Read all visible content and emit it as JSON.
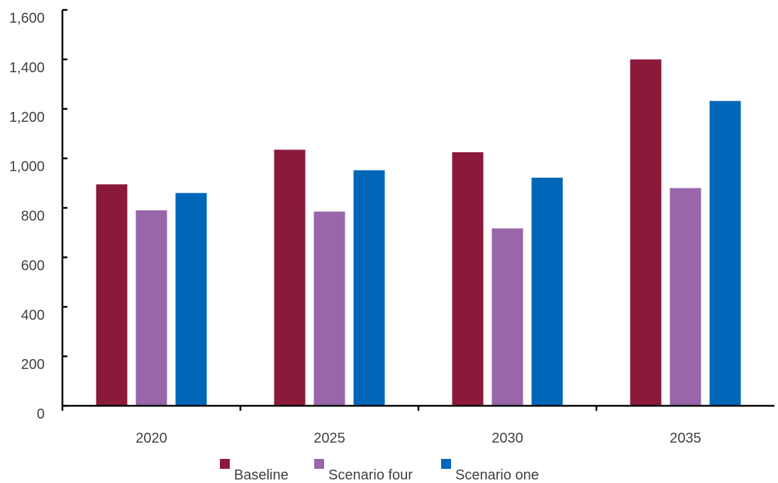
{
  "chart_data": {
    "type": "bar",
    "title": "",
    "xlabel": "",
    "ylabel": "",
    "categories": [
      "2020",
      "2025",
      "2030",
      "2035"
    ],
    "series": [
      {
        "name": "Baseline",
        "color": "#8B1A3A",
        "values": [
          895,
          1035,
          1025,
          1400
        ]
      },
      {
        "name": "Scenario four",
        "color": "#9966AA",
        "values": [
          790,
          785,
          717,
          880
        ]
      },
      {
        "name": "Scenario one",
        "color": "#0066B8",
        "values": [
          860,
          952,
          922,
          1232
        ]
      }
    ],
    "ylim": [
      0,
      1600
    ],
    "yticks": [
      0,
      200,
      400,
      600,
      800,
      1000,
      1200,
      1400,
      1600
    ],
    "ytick_labels": [
      "0",
      "200",
      "400",
      "600",
      "800",
      "1,000",
      "1,200",
      "1,400",
      "1,600"
    ],
    "grid": false,
    "legend_position": "bottom"
  }
}
